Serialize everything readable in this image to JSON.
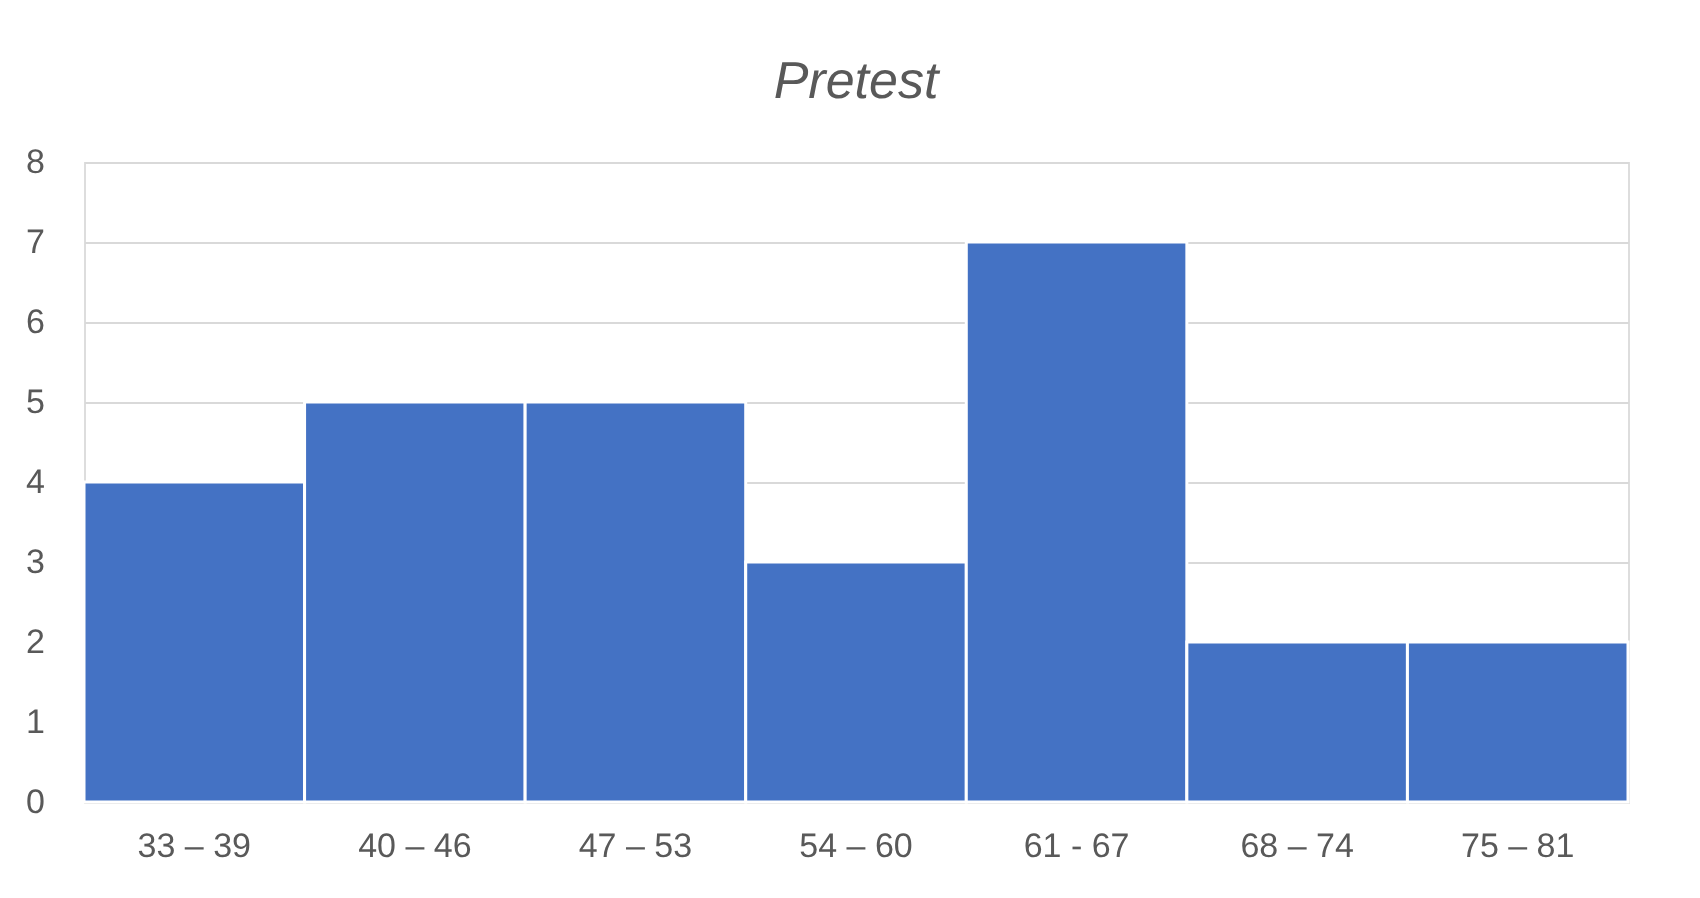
{
  "chart_data": {
    "type": "bar",
    "title": "Pretest",
    "categories": [
      "33 – 39",
      "40 – 46",
      "47 – 53",
      "54 – 60",
      "61 - 67",
      "68 – 74",
      "75 – 81"
    ],
    "values": [
      4,
      5,
      5,
      3,
      7,
      2,
      2
    ],
    "color": "#4472c4",
    "ylim": [
      0,
      8
    ],
    "yticks": [
      0,
      1,
      2,
      3,
      4,
      5,
      6,
      7,
      8
    ],
    "grid": "y"
  }
}
